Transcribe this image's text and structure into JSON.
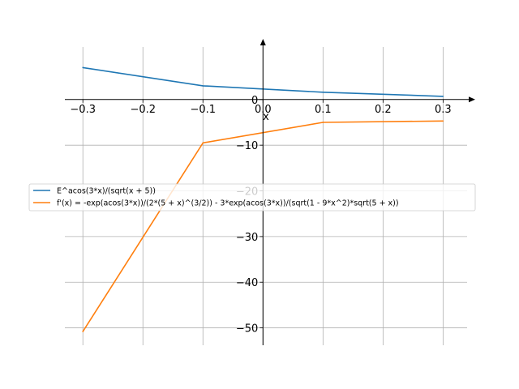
{
  "chart_data": {
    "type": "line",
    "title": "",
    "xlabel": "x",
    "ylabel": "",
    "xlim": [
      -0.33,
      0.34
    ],
    "ylim": [
      -53.8,
      11.5
    ],
    "grid": true,
    "legend_position": "center-left",
    "x_ticks": [
      -0.3,
      -0.2,
      -0.1,
      0.0,
      0.1,
      0.2,
      0.3
    ],
    "x_tick_labels": [
      "−0.3",
      "−0.2",
      "−0.1",
      "0.0",
      "0.1",
      "0.2",
      "0.3"
    ],
    "y_ticks": [
      0,
      -10,
      -20,
      -30,
      -40,
      -50
    ],
    "y_tick_labels": [
      "0",
      "−10",
      "−20",
      "−30",
      "−40",
      "−50"
    ],
    "series": [
      {
        "name": "E^acos(3*x)/(sqrt(x + 5))",
        "color": "#1f77b4",
        "x": [
          -0.3,
          -0.1,
          0.1,
          0.3
        ],
        "y": [
          7.0,
          3.0,
          1.6,
          0.7
        ]
      },
      {
        "name": "f'(x) = -exp(acos(3*x))/(2*(5 + x)^(3/2)) - 3*exp(acos(3*x))/(sqrt(1 - 9*x^2)*sqrt(5 + x))",
        "color": "#ff7f0e",
        "x": [
          -0.3,
          -0.1,
          0.1,
          0.3
        ],
        "y": [
          -50.8,
          -9.5,
          -5.0,
          -4.7
        ]
      }
    ]
  }
}
